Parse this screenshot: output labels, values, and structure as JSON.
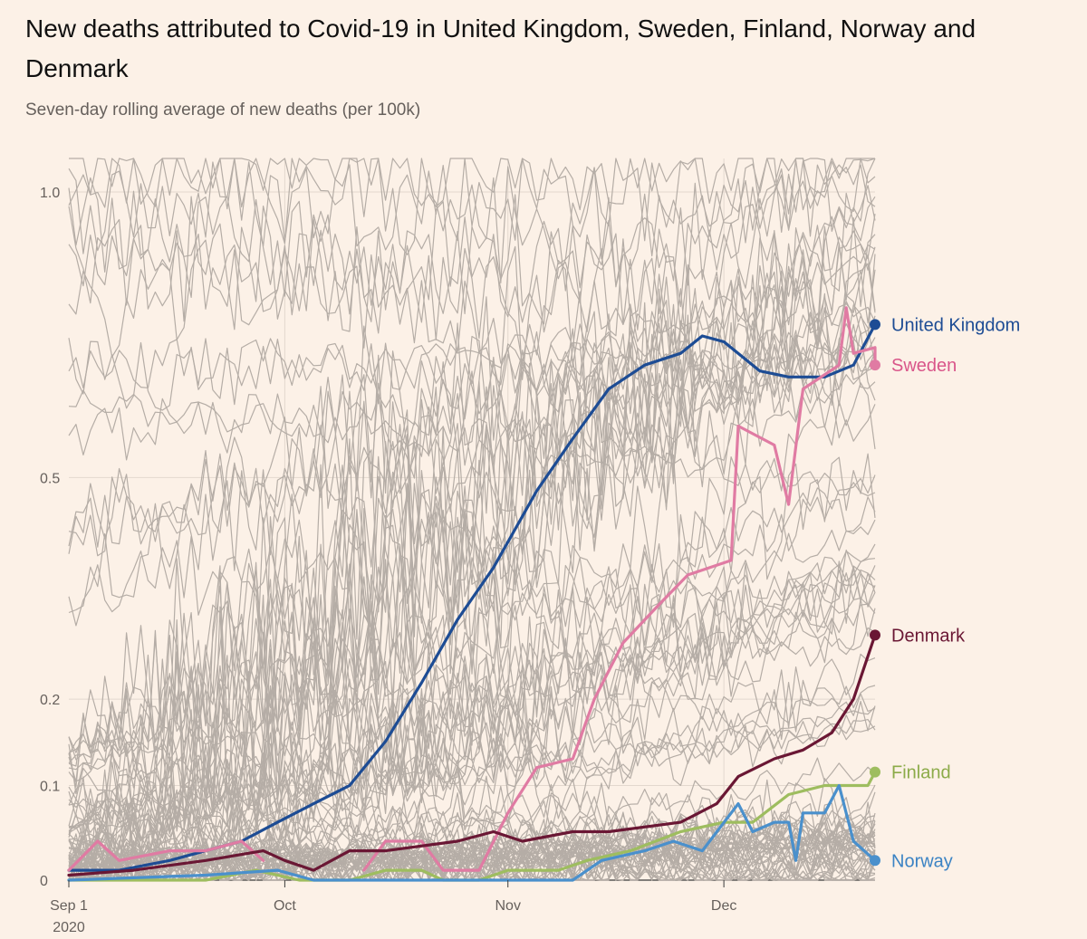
{
  "title": "New deaths attributed to Covid-19 in United Kingdom, Sweden, Finland, Norway and Denmark",
  "subtitle": "Seven-day rolling average of new deaths (per 100k)",
  "chart_data": {
    "type": "line",
    "y_scale": "log(1 + y)",
    "ylim": [
      0,
      1.04
    ],
    "y_ticks": [
      {
        "value": 0,
        "label": "0"
      },
      {
        "value": 0.1,
        "label": "0.1"
      },
      {
        "value": 0.2,
        "label": "0.2"
      },
      {
        "value": 0.5,
        "label": "0.5"
      },
      {
        "value": 1.0,
        "label": "1.0"
      }
    ],
    "x_range": [
      "2020-09-01",
      "2020-12-22"
    ],
    "x_ticks": [
      {
        "date": "2020-09-01",
        "label": "Sep 1",
        "sublabel": "2020"
      },
      {
        "date": "2020-10-01",
        "label": "Oct",
        "sublabel": ""
      },
      {
        "date": "2020-11-01",
        "label": "Nov",
        "sublabel": ""
      },
      {
        "date": "2020-12-01",
        "label": "Dec",
        "sublabel": ""
      }
    ],
    "background_series": {
      "count": 90,
      "color": "#b5ada6",
      "note": "other countries, unlabeled"
    },
    "series": [
      {
        "name": "United Kingdom",
        "color": "#1d4c94",
        "label_color": "#1d4c94",
        "points": [
          [
            "2020-09-01",
            0.01
          ],
          [
            "2020-09-08",
            0.01
          ],
          [
            "2020-09-15",
            0.02
          ],
          [
            "2020-09-20",
            0.03
          ],
          [
            "2020-09-25",
            0.04
          ],
          [
            "2020-09-30",
            0.06
          ],
          [
            "2020-10-05",
            0.08
          ],
          [
            "2020-10-10",
            0.1
          ],
          [
            "2020-10-15",
            0.15
          ],
          [
            "2020-10-20",
            0.22
          ],
          [
            "2020-10-25",
            0.3
          ],
          [
            "2020-10-30",
            0.37
          ],
          [
            "2020-11-05",
            0.48
          ],
          [
            "2020-11-10",
            0.56
          ],
          [
            "2020-11-15",
            0.64
          ],
          [
            "2020-11-20",
            0.68
          ],
          [
            "2020-11-25",
            0.7
          ],
          [
            "2020-11-28",
            0.73
          ],
          [
            "2020-12-01",
            0.72
          ],
          [
            "2020-12-06",
            0.67
          ],
          [
            "2020-12-10",
            0.66
          ],
          [
            "2020-12-15",
            0.66
          ],
          [
            "2020-12-19",
            0.68
          ],
          [
            "2020-12-22",
            0.75
          ]
        ]
      },
      {
        "name": "Sweden",
        "color": "#e07ba3",
        "label_color": "#d9568a",
        "points": [
          [
            "2020-09-01",
            0.01
          ],
          [
            "2020-09-05",
            0.04
          ],
          [
            "2020-09-08",
            0.02
          ],
          [
            "2020-09-15",
            0.03
          ],
          [
            "2020-09-20",
            0.03
          ],
          [
            "2020-09-25",
            0.04
          ],
          [
            "2020-09-28",
            0.02
          ],
          [
            "2020-10-01",
            null
          ],
          [
            "2020-10-12",
            0.01
          ],
          [
            "2020-10-15",
            0.04
          ],
          [
            "2020-10-20",
            0.04
          ],
          [
            "2020-10-23",
            0.01
          ],
          [
            "2020-10-28",
            0.01
          ],
          [
            "2020-11-01",
            0.07
          ],
          [
            "2020-11-05",
            0.12
          ],
          [
            "2020-11-10",
            0.13
          ],
          [
            "2020-11-13",
            0.2
          ],
          [
            "2020-11-17",
            0.27
          ],
          [
            "2020-11-22",
            0.32
          ],
          [
            "2020-11-26",
            0.36
          ],
          [
            "2020-12-02",
            0.38
          ],
          [
            "2020-12-03",
            0.58
          ],
          [
            "2020-12-08",
            0.55
          ],
          [
            "2020-12-10",
            0.46
          ],
          [
            "2020-12-12",
            0.64
          ],
          [
            "2020-12-17",
            0.68
          ],
          [
            "2020-12-18",
            0.78
          ],
          [
            "2020-12-19",
            0.7
          ],
          [
            "2020-12-22",
            0.71
          ],
          [
            "2020-12-22",
            0.68
          ]
        ]
      },
      {
        "name": "Denmark",
        "color": "#6a1734",
        "label_color": "#6a1734",
        "points": [
          [
            "2020-09-01",
            0.005
          ],
          [
            "2020-09-10",
            0.01
          ],
          [
            "2020-09-20",
            0.02
          ],
          [
            "2020-09-28",
            0.03
          ],
          [
            "2020-10-01",
            0.02
          ],
          [
            "2020-10-05",
            0.01
          ],
          [
            "2020-10-10",
            0.03
          ],
          [
            "2020-10-15",
            0.03
          ],
          [
            "2020-10-25",
            0.04
          ],
          [
            "2020-10-30",
            0.05
          ],
          [
            "2020-11-03",
            0.04
          ],
          [
            "2020-11-10",
            0.05
          ],
          [
            "2020-11-15",
            0.05
          ],
          [
            "2020-11-25",
            0.06
          ],
          [
            "2020-11-30",
            0.08
          ],
          [
            "2020-12-03",
            0.11
          ],
          [
            "2020-12-08",
            0.13
          ],
          [
            "2020-12-12",
            0.14
          ],
          [
            "2020-12-16",
            0.16
          ],
          [
            "2020-12-19",
            0.2
          ],
          [
            "2020-12-22",
            0.28
          ]
        ]
      },
      {
        "name": "Finland",
        "color": "#9ebd5f",
        "label_color": "#8cab49",
        "points": [
          [
            "2020-09-01",
            0.0
          ],
          [
            "2020-09-20",
            0.0
          ],
          [
            "2020-09-27",
            0.01
          ],
          [
            "2020-10-03",
            0.0
          ],
          [
            "2020-10-10",
            0.0
          ],
          [
            "2020-10-15",
            0.01
          ],
          [
            "2020-10-20",
            0.01
          ],
          [
            "2020-10-23",
            0.0
          ],
          [
            "2020-10-28",
            0.0
          ],
          [
            "2020-11-01",
            0.01
          ],
          [
            "2020-11-08",
            0.01
          ],
          [
            "2020-11-12",
            0.02
          ],
          [
            "2020-11-18",
            0.03
          ],
          [
            "2020-11-25",
            0.05
          ],
          [
            "2020-12-01",
            0.06
          ],
          [
            "2020-12-05",
            0.06
          ],
          [
            "2020-12-10",
            0.09
          ],
          [
            "2020-12-15",
            0.1
          ],
          [
            "2020-12-19",
            0.1
          ],
          [
            "2020-12-21",
            0.1
          ],
          [
            "2020-12-22",
            0.115
          ]
        ]
      },
      {
        "name": "Norway",
        "color": "#4a90cc",
        "label_color": "#3b83c4",
        "points": [
          [
            "2020-09-01",
            0.0
          ],
          [
            "2020-09-20",
            0.005
          ],
          [
            "2020-09-30",
            0.01
          ],
          [
            "2020-10-05",
            0.0
          ],
          [
            "2020-11-10",
            0.0
          ],
          [
            "2020-11-14",
            0.02
          ],
          [
            "2020-11-20",
            0.03
          ],
          [
            "2020-11-24",
            0.04
          ],
          [
            "2020-11-28",
            0.03
          ],
          [
            "2020-12-03",
            0.08
          ],
          [
            "2020-12-05",
            0.05
          ],
          [
            "2020-12-08",
            0.06
          ],
          [
            "2020-12-10",
            0.06
          ],
          [
            "2020-12-11",
            0.02
          ],
          [
            "2020-12-12",
            0.07
          ],
          [
            "2020-12-15",
            0.07
          ],
          [
            "2020-12-17",
            0.1
          ],
          [
            "2020-12-19",
            0.04
          ],
          [
            "2020-12-22",
            0.02
          ]
        ]
      }
    ]
  }
}
